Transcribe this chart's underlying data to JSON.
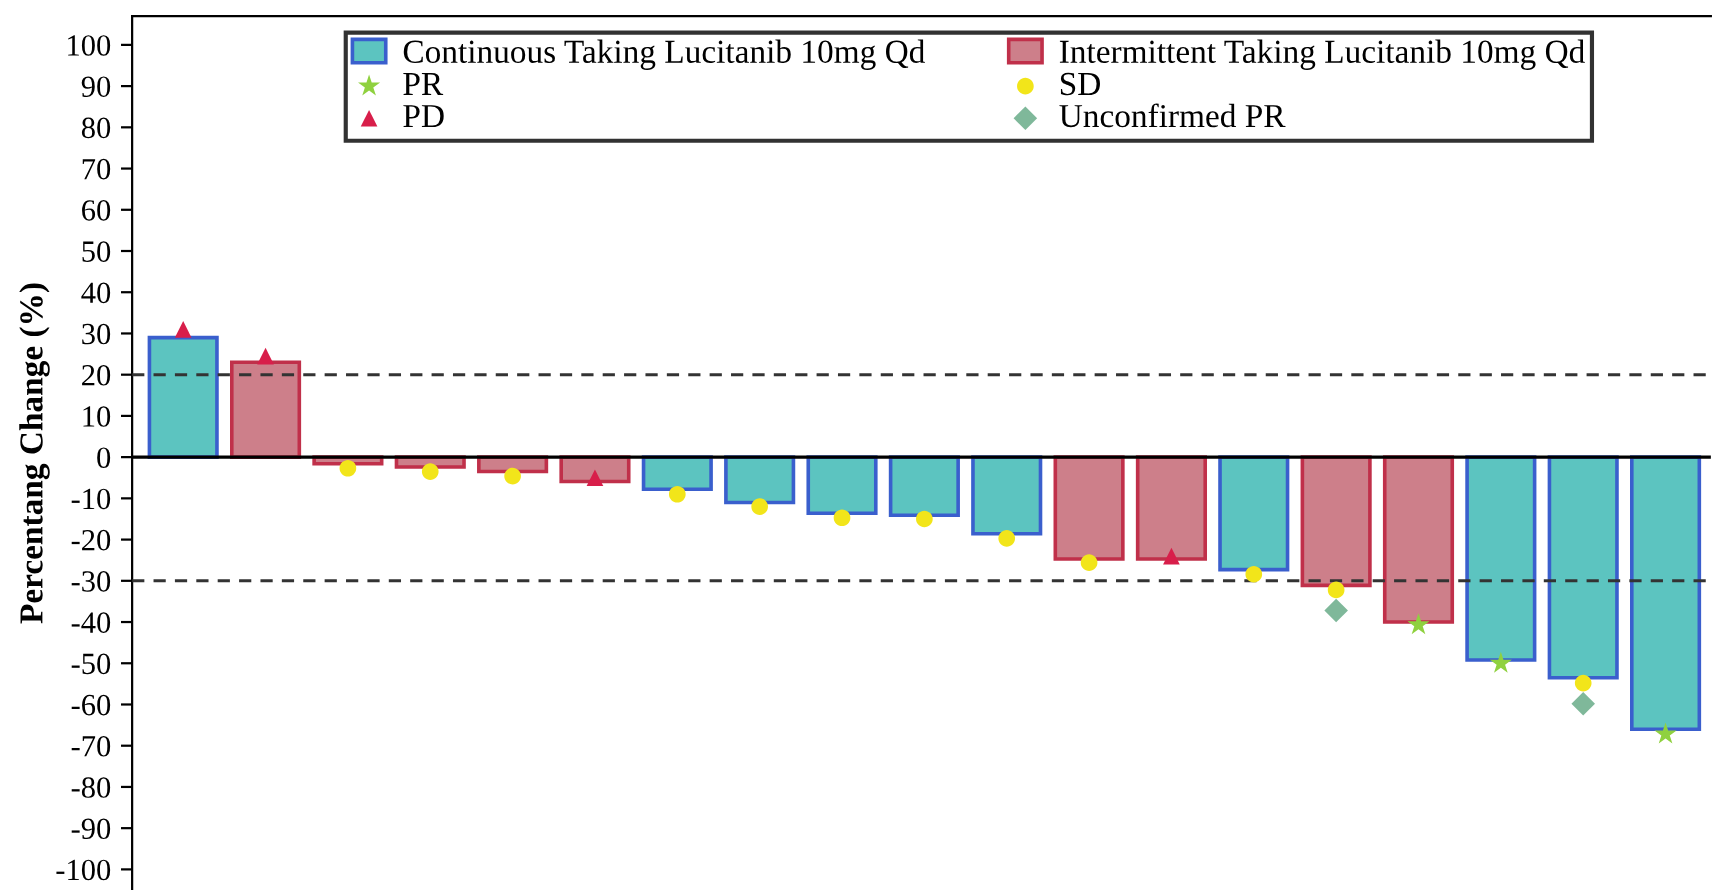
{
  "chart_data": {
    "type": "bar",
    "ylabel": "Percentang Change (%)",
    "categories": [
      null,
      null,
      null,
      null,
      null,
      null,
      null,
      null,
      null,
      null,
      null,
      null,
      null,
      null,
      null,
      null,
      null,
      null,
      null
    ],
    "series": [
      {
        "name": "Continuous Taking Lucitanib 10mg Qd",
        "color": "#5cc4c0",
        "values": [
          29,
          null,
          null,
          null,
          null,
          null,
          -7.8,
          -11,
          -13.6,
          -14.1,
          -18.6,
          null,
          null,
          -27.3,
          null,
          null,
          -49.2,
          -53.5,
          -66
        ]
      },
      {
        "name": "Intermittent Taking Lucitanib 10mg Qd",
        "color": "#cd7f8a",
        "values": [
          null,
          23,
          -1.6,
          -2.4,
          -3.5,
          -5.9,
          null,
          null,
          null,
          null,
          null,
          -24.7,
          -24.7,
          null,
          -31.1,
          -40,
          null,
          null,
          null
        ]
      },
      {
        "name": "PR",
        "type": "scatter",
        "marker": "star",
        "color": "#8fd13f",
        "values": [
          null,
          null,
          null,
          null,
          null,
          null,
          null,
          null,
          null,
          null,
          null,
          null,
          null,
          null,
          null,
          -40.7,
          -50,
          null,
          -67.2
        ]
      },
      {
        "name": "SD",
        "type": "scatter",
        "marker": "circle",
        "color": "#f2e51a",
        "values": [
          null,
          null,
          -2.7,
          -3.5,
          -4.6,
          null,
          -9,
          -12,
          -14.7,
          -15,
          -19.7,
          -25.6,
          null,
          -28.4,
          -32.2,
          null,
          null,
          -54.8,
          null
        ]
      },
      {
        "name": "PD",
        "type": "scatter",
        "marker": "triangle",
        "color": "#d81e4a",
        "values": [
          31,
          24.5,
          null,
          null,
          null,
          -5,
          null,
          null,
          null,
          null,
          null,
          null,
          -24,
          null,
          null,
          null,
          null,
          null,
          null
        ]
      },
      {
        "name": "Unconfirmed PR",
        "type": "scatter",
        "marker": "diamond",
        "color": "#7fb89a",
        "values": [
          null,
          null,
          null,
          null,
          null,
          null,
          null,
          null,
          null,
          null,
          null,
          null,
          null,
          null,
          -37.2,
          null,
          null,
          -59.8,
          null
        ]
      }
    ],
    "ref_lines": [
      {
        "axis": "y",
        "value": 0,
        "color": "#000000",
        "line_style": "solid"
      },
      {
        "axis": "y",
        "value": 20,
        "color": "#333333",
        "line_style": "dashed"
      },
      {
        "axis": "y",
        "value": -30,
        "color": "#333333",
        "line_style": "dashed"
      }
    ],
    "ylim": [
      -105,
      107
    ],
    "yticks": [
      -100,
      -90,
      -80,
      -70,
      -60,
      -50,
      -40,
      -30,
      -20,
      -10,
      0,
      10,
      20,
      30,
      40,
      50,
      60,
      70,
      80,
      90,
      100
    ],
    "tick_labels": "y",
    "grid": false,
    "legend": "top"
  }
}
